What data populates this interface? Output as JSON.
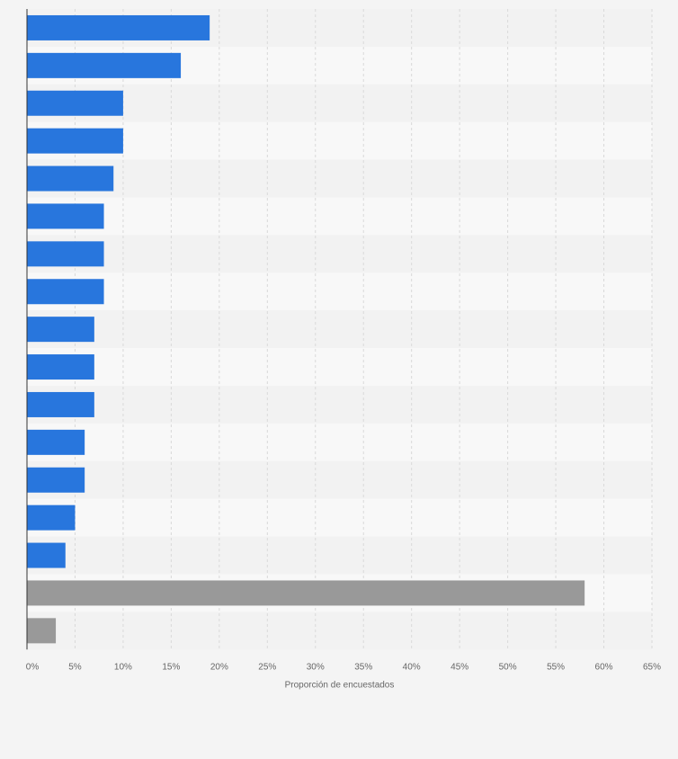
{
  "chart_data": {
    "type": "bar",
    "orientation": "horizontal",
    "title": "",
    "xlabel": "Proporción de encuestados",
    "ylabel": "",
    "xlim": [
      0,
      65
    ],
    "x_ticks": [
      "0%",
      "5%",
      "10%",
      "15%",
      "20%",
      "25%",
      "30%",
      "35%",
      "40%",
      "45%",
      "50%",
      "55%",
      "60%",
      "65%"
    ],
    "grid": true,
    "categories": [
      "",
      "",
      "",
      "",
      "",
      "",
      "",
      "",
      "",
      "",
      "",
      "",
      "",
      "",
      "",
      "",
      ""
    ],
    "values": [
      19,
      16,
      10,
      10,
      9,
      8,
      8,
      8,
      7,
      7,
      7,
      6,
      6,
      5,
      4,
      58,
      3
    ],
    "bar_colors": [
      "#2876dd",
      "#2876dd",
      "#2876dd",
      "#2876dd",
      "#2876dd",
      "#2876dd",
      "#2876dd",
      "#2876dd",
      "#2876dd",
      "#2876dd",
      "#2876dd",
      "#2876dd",
      "#2876dd",
      "#2876dd",
      "#2876dd",
      "#999999",
      "#999999"
    ],
    "colors": {
      "primary": "#2876dd",
      "secondary": "#999999",
      "band_dark": "#f2f2f2",
      "band_light": "#f8f8f8",
      "grid": "#d9d9d9",
      "axis": "#333333",
      "tick_text": "#666666"
    }
  }
}
